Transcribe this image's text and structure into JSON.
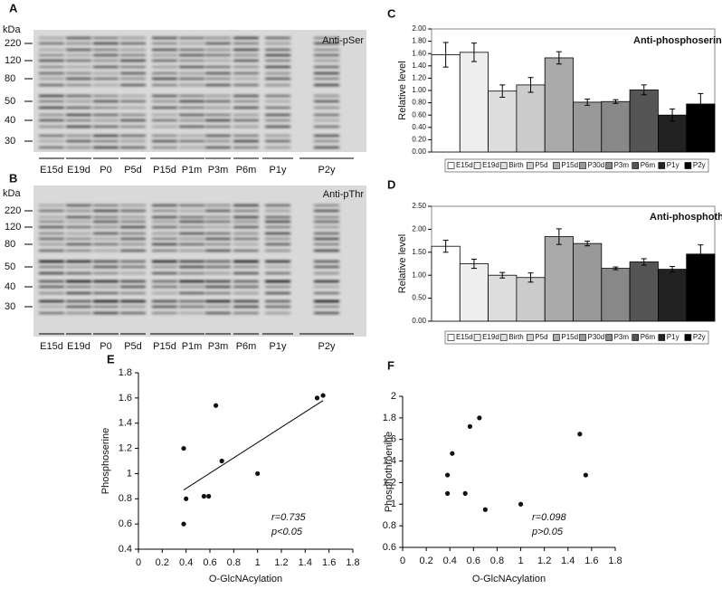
{
  "blots": [
    {
      "panel": "A",
      "unit": "kDa",
      "markers": [
        220,
        120,
        80,
        50,
        40,
        30
      ],
      "antibody": "Anti-pSer",
      "lanes": [
        "E15d",
        "E19d",
        "P0",
        "P5d",
        "P15d",
        "P1m",
        "P3m",
        "P6m",
        "P1y",
        "P2y"
      ]
    },
    {
      "panel": "B",
      "unit": "kDa",
      "markers": [
        220,
        120,
        80,
        50,
        40,
        30
      ],
      "antibody": "Anti-pThr",
      "lanes": [
        "E15d",
        "E19d",
        "P0",
        "P5d",
        "P15d",
        "P1m",
        "P3m",
        "P6m",
        "P1y",
        "P2y"
      ]
    }
  ],
  "chart_data": [
    {
      "type": "bar",
      "panel": "C",
      "annotation": "Anti-phosphoserine",
      "y_label": "Relative level",
      "categories": [
        "E15d",
        "E19d",
        "Birth",
        "P5d",
        "P15d",
        "P30d",
        "P3m",
        "P6m",
        "P1y",
        "P2y"
      ],
      "values": [
        1.58,
        1.62,
        0.99,
        1.09,
        1.53,
        0.81,
        0.82,
        1.01,
        0.6,
        0.78
      ],
      "errors": [
        0.2,
        0.15,
        0.1,
        0.12,
        0.1,
        0.05,
        0.03,
        0.08,
        0.1,
        0.17
      ],
      "colors": [
        "#ffffff",
        "#eeeeee",
        "#dddddd",
        "#cccccc",
        "#aaaaaa",
        "#999999",
        "#888888",
        "#555555",
        "#222222",
        "#000000"
      ],
      "ylim": [
        0,
        2
      ],
      "yticks": [
        {
          "value": 0,
          "label": "0.00"
        },
        {
          "value": 0.2,
          "label": "0.20"
        },
        {
          "value": 0.4,
          "label": "0.40"
        },
        {
          "value": 0.6,
          "label": "0.60"
        },
        {
          "value": 0.8,
          "label": "0.80"
        },
        {
          "value": 1,
          "label": "1.00"
        },
        {
          "value": 1.2,
          "label": "1.20"
        },
        {
          "value": 1.4,
          "label": "1.40"
        },
        {
          "value": 1.6,
          "label": "1.60"
        },
        {
          "value": 1.8,
          "label": "1.80"
        },
        {
          "value": 2,
          "label": "2.00"
        }
      ],
      "legend": "bottom"
    },
    {
      "type": "bar",
      "panel": "D",
      "annotation": "Anti-phosphothroenine",
      "y_label": "Relative level",
      "categories": [
        "E15d",
        "E19d",
        "Birth",
        "P5d",
        "P15d",
        "P30d",
        "P3m",
        "P6m",
        "P1y",
        "P2y"
      ],
      "values": [
        1.63,
        1.25,
        1.0,
        0.95,
        1.84,
        1.69,
        1.15,
        1.29,
        1.13,
        1.46
      ],
      "errors": [
        0.13,
        0.1,
        0.06,
        0.1,
        0.17,
        0.05,
        0.03,
        0.07,
        0.06,
        0.2
      ],
      "colors": [
        "#ffffff",
        "#eeeeee",
        "#dddddd",
        "#cccccc",
        "#aaaaaa",
        "#999999",
        "#888888",
        "#555555",
        "#222222",
        "#000000"
      ],
      "ylim": [
        0,
        2.5
      ],
      "yticks": [
        {
          "value": 0,
          "label": "0.00"
        },
        {
          "value": 0.5,
          "label": "0.50"
        },
        {
          "value": 1,
          "label": "1.00"
        },
        {
          "value": 1.5,
          "label": "1.50"
        },
        {
          "value": 2,
          "label": "2.00"
        },
        {
          "value": 2.5,
          "label": "2.50"
        }
      ],
      "legend": "bottom"
    },
    {
      "type": "scatter",
      "panel": "E",
      "x_label": "O-GlcNAcylation",
      "y_label": "Phosphoserine",
      "x": [
        0.38,
        0.38,
        0.4,
        0.55,
        0.59,
        0.65,
        0.7,
        1.0,
        1.5,
        1.55
      ],
      "values": [
        1.2,
        0.6,
        0.8,
        0.82,
        0.82,
        1.54,
        1.1,
        1.0,
        1.6,
        1.62
      ],
      "trendline": {
        "x": [
          0.38,
          1.55
        ],
        "values": [
          0.87,
          1.58
        ]
      },
      "annotations": [
        "r=0.735",
        "p<0.05"
      ],
      "xlim": [
        0,
        1.8
      ],
      "xticks": [
        0,
        0.2,
        0.4,
        0.6,
        0.8,
        1,
        1.2,
        1.4,
        1.6,
        1.8
      ],
      "ylim": [
        0.4,
        1.8
      ],
      "yticks": [
        0.4,
        0.6,
        0.8,
        1,
        1.2,
        1.4,
        1.6,
        1.8
      ]
    },
    {
      "type": "scatter",
      "panel": "F",
      "x_label": "O-GlcNAcylation",
      "y_label": "Phosphothroenine",
      "x": [
        0.38,
        0.38,
        0.42,
        0.53,
        0.57,
        0.65,
        0.7,
        1.0,
        1.5,
        1.55
      ],
      "values": [
        1.27,
        1.1,
        1.47,
        1.1,
        1.72,
        1.8,
        0.95,
        1.0,
        1.65,
        1.27
      ],
      "annotations": [
        "r=0.098",
        "p>0.05"
      ],
      "xlim": [
        0,
        1.8
      ],
      "xticks": [
        0,
        0.2,
        0.4,
        0.6,
        0.8,
        1,
        1.2,
        1.4,
        1.6,
        1.8
      ],
      "ylim": [
        0.6,
        2
      ],
      "yticks": [
        0.6,
        0.8,
        1,
        1.2,
        1.4,
        1.6,
        1.8,
        2
      ]
    }
  ]
}
